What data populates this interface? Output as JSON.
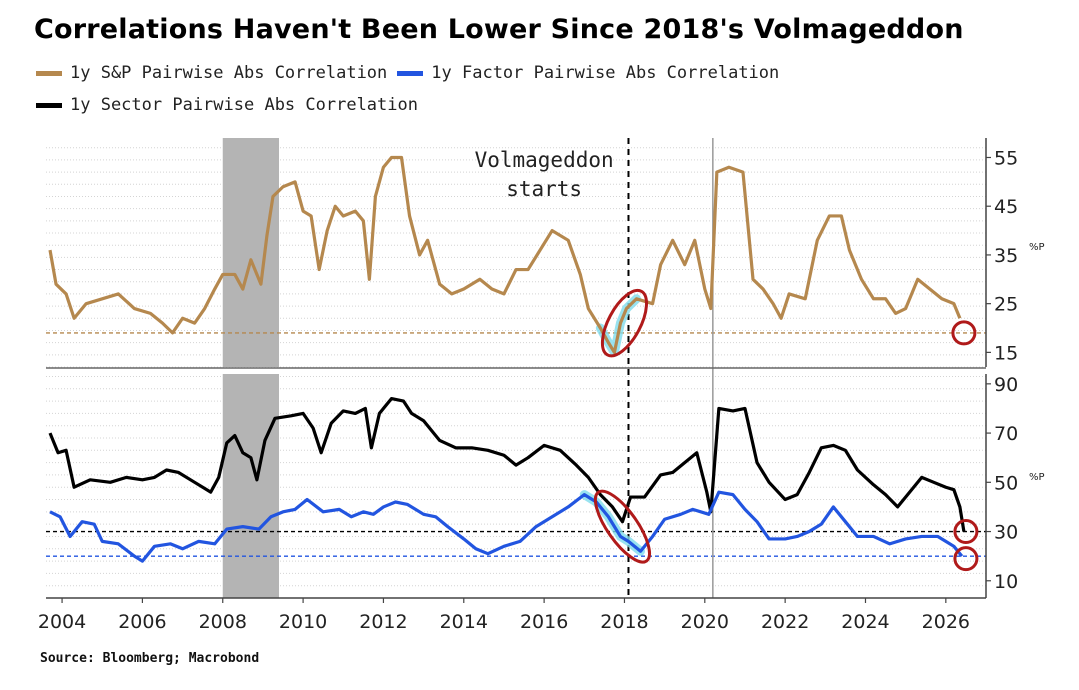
{
  "title": "Correlations Haven't Been Lower Since 2018's Volmageddon",
  "source": "Source: Bloomberg; Macrobond",
  "colors": {
    "sp": "#b5884e",
    "factor": "#2255e0",
    "sector": "#000000",
    "recession": "#b4b4b4",
    "circle": "#b01a1a",
    "highlight": "#7fdcec"
  },
  "legend": [
    {
      "label": "1y S&P Pairwise Abs Correlation",
      "color": "#b5884e"
    },
    {
      "label": "1y Factor Pairwise Abs Correlation",
      "color": "#2255e0"
    },
    {
      "label": "1y Sector Pairwise Abs Correlation",
      "color": "#000000"
    }
  ],
  "chart_data": [
    {
      "type": "line",
      "panel": "top",
      "unit": "%P",
      "ylim": [
        12,
        59
      ],
      "yticks": [
        15,
        25,
        35,
        45,
        55
      ],
      "xlim": [
        2003.6,
        2027.0
      ],
      "xticks": [
        2004,
        2006,
        2008,
        2010,
        2012,
        2014,
        2016,
        2018,
        2020,
        2022,
        2024,
        2026
      ],
      "reference_lines": [
        {
          "y": 19,
          "color": "#b5884e",
          "style": "dashed"
        }
      ],
      "recession_shading": [
        2008.0,
        2009.4
      ],
      "vertical_lines": [
        {
          "x": 2018.1,
          "style": "dashed"
        },
        {
          "x": 2020.2,
          "style": "solid"
        }
      ],
      "annotation": "Volmageddon\nstarts",
      "series": [
        {
          "name": "1y S&P Pairwise Abs Correlation",
          "color": "#b5884e",
          "points": [
            [
              2003.7,
              36
            ],
            [
              2003.85,
              29
            ],
            [
              2004.1,
              27
            ],
            [
              2004.3,
              22
            ],
            [
              2004.6,
              25
            ],
            [
              2005.0,
              26
            ],
            [
              2005.4,
              27
            ],
            [
              2005.8,
              24
            ],
            [
              2006.2,
              23
            ],
            [
              2006.5,
              21
            ],
            [
              2006.75,
              19
            ],
            [
              2007.0,
              22
            ],
            [
              2007.3,
              21
            ],
            [
              2007.55,
              24
            ],
            [
              2007.8,
              28
            ],
            [
              2008.0,
              31
            ],
            [
              2008.3,
              31
            ],
            [
              2008.5,
              28
            ],
            [
              2008.7,
              34
            ],
            [
              2008.95,
              29
            ],
            [
              2009.1,
              39
            ],
            [
              2009.25,
              47
            ],
            [
              2009.5,
              49
            ],
            [
              2009.8,
              50
            ],
            [
              2010.0,
              44
            ],
            [
              2010.2,
              43
            ],
            [
              2010.4,
              32
            ],
            [
              2010.6,
              40
            ],
            [
              2010.8,
              45
            ],
            [
              2011.0,
              43
            ],
            [
              2011.3,
              44
            ],
            [
              2011.5,
              42
            ],
            [
              2011.65,
              30
            ],
            [
              2011.8,
              47
            ],
            [
              2012.0,
              53
            ],
            [
              2012.2,
              55
            ],
            [
              2012.45,
              55
            ],
            [
              2012.65,
              43
            ],
            [
              2012.9,
              35
            ],
            [
              2013.1,
              38
            ],
            [
              2013.4,
              29
            ],
            [
              2013.7,
              27
            ],
            [
              2014.0,
              28
            ],
            [
              2014.4,
              30
            ],
            [
              2014.7,
              28
            ],
            [
              2015.0,
              27
            ],
            [
              2015.3,
              32
            ],
            [
              2015.6,
              32
            ],
            [
              2015.9,
              36
            ],
            [
              2016.2,
              40
            ],
            [
              2016.6,
              38
            ],
            [
              2016.9,
              31
            ],
            [
              2017.1,
              24
            ],
            [
              2017.4,
              20
            ],
            [
              2017.6,
              17
            ],
            [
              2017.75,
              15
            ],
            [
              2017.9,
              21
            ],
            [
              2018.05,
              24
            ],
            [
              2018.3,
              26
            ],
            [
              2018.7,
              25
            ],
            [
              2018.9,
              33
            ],
            [
              2019.2,
              38
            ],
            [
              2019.5,
              33
            ],
            [
              2019.75,
              38
            ],
            [
              2020.0,
              28
            ],
            [
              2020.15,
              24
            ],
            [
              2020.3,
              52
            ],
            [
              2020.6,
              53
            ],
            [
              2020.95,
              52
            ],
            [
              2021.2,
              30
            ],
            [
              2021.45,
              28
            ],
            [
              2021.7,
              25
            ],
            [
              2021.9,
              22
            ],
            [
              2022.1,
              27
            ],
            [
              2022.5,
              26
            ],
            [
              2022.8,
              38
            ],
            [
              2023.1,
              43
            ],
            [
              2023.4,
              43
            ],
            [
              2023.6,
              36
            ],
            [
              2023.9,
              30
            ],
            [
              2024.2,
              26
            ],
            [
              2024.5,
              26
            ],
            [
              2024.75,
              23
            ],
            [
              2025.0,
              24
            ],
            [
              2025.3,
              30
            ],
            [
              2025.6,
              28
            ],
            [
              2025.9,
              26
            ],
            [
              2026.2,
              25
            ],
            [
              2026.35,
              22
            ]
          ]
        }
      ]
    },
    {
      "type": "line",
      "panel": "bottom",
      "unit": "%P",
      "ylim": [
        3,
        94
      ],
      "yticks": [
        10,
        30,
        50,
        70,
        90
      ],
      "xlim": [
        2003.6,
        2027.0
      ],
      "xticks": [
        2004,
        2006,
        2008,
        2010,
        2012,
        2014,
        2016,
        2018,
        2020,
        2022,
        2024,
        2026
      ],
      "reference_lines": [
        {
          "y": 30,
          "color": "#000000",
          "style": "dashed"
        },
        {
          "y": 20,
          "color": "#2255e0",
          "style": "dashed"
        }
      ],
      "recession_shading": [
        2008.0,
        2009.4
      ],
      "vertical_lines": [
        {
          "x": 2018.1,
          "style": "dashed"
        },
        {
          "x": 2020.2,
          "style": "solid"
        }
      ],
      "series": [
        {
          "name": "1y Sector Pairwise Abs Correlation",
          "color": "#000000",
          "points": [
            [
              2003.7,
              70
            ],
            [
              2003.9,
              62
            ],
            [
              2004.1,
              63
            ],
            [
              2004.3,
              48
            ],
            [
              2004.7,
              51
            ],
            [
              2005.2,
              50
            ],
            [
              2005.6,
              52
            ],
            [
              2006.0,
              51
            ],
            [
              2006.3,
              52
            ],
            [
              2006.6,
              55
            ],
            [
              2006.9,
              54
            ],
            [
              2007.3,
              50
            ],
            [
              2007.7,
              46
            ],
            [
              2007.9,
              52
            ],
            [
              2008.1,
              66
            ],
            [
              2008.3,
              69
            ],
            [
              2008.5,
              62
            ],
            [
              2008.7,
              60
            ],
            [
              2008.85,
              51
            ],
            [
              2009.05,
              67
            ],
            [
              2009.3,
              76
            ],
            [
              2009.7,
              77
            ],
            [
              2010.0,
              78
            ],
            [
              2010.25,
              72
            ],
            [
              2010.45,
              62
            ],
            [
              2010.7,
              74
            ],
            [
              2011.0,
              79
            ],
            [
              2011.3,
              78
            ],
            [
              2011.55,
              80
            ],
            [
              2011.7,
              64
            ],
            [
              2011.9,
              78
            ],
            [
              2012.2,
              84
            ],
            [
              2012.5,
              83
            ],
            [
              2012.7,
              78
            ],
            [
              2013.0,
              75
            ],
            [
              2013.4,
              67
            ],
            [
              2013.8,
              64
            ],
            [
              2014.2,
              64
            ],
            [
              2014.6,
              63
            ],
            [
              2015.0,
              61
            ],
            [
              2015.3,
              57
            ],
            [
              2015.6,
              60
            ],
            [
              2016.0,
              65
            ],
            [
              2016.4,
              63
            ],
            [
              2016.8,
              57
            ],
            [
              2017.1,
              52
            ],
            [
              2017.4,
              45
            ],
            [
              2017.7,
              40
            ],
            [
              2017.95,
              34
            ],
            [
              2018.15,
              44
            ],
            [
              2018.5,
              44
            ],
            [
              2018.9,
              53
            ],
            [
              2019.2,
              54
            ],
            [
              2019.5,
              58
            ],
            [
              2019.8,
              62
            ],
            [
              2020.05,
              46
            ],
            [
              2020.15,
              38
            ],
            [
              2020.35,
              80
            ],
            [
              2020.7,
              79
            ],
            [
              2021.0,
              80
            ],
            [
              2021.3,
              58
            ],
            [
              2021.6,
              50
            ],
            [
              2022.0,
              43
            ],
            [
              2022.3,
              45
            ],
            [
              2022.6,
              54
            ],
            [
              2022.9,
              64
            ],
            [
              2023.2,
              65
            ],
            [
              2023.5,
              63
            ],
            [
              2023.8,
              55
            ],
            [
              2024.2,
              49
            ],
            [
              2024.5,
              45
            ],
            [
              2024.8,
              40
            ],
            [
              2025.1,
              46
            ],
            [
              2025.4,
              52
            ],
            [
              2025.7,
              50
            ],
            [
              2026.0,
              48
            ],
            [
              2026.2,
              47
            ],
            [
              2026.35,
              40
            ],
            [
              2026.45,
              30
            ]
          ]
        },
        {
          "name": "1y Factor Pairwise Abs Correlation",
          "color": "#2255e0",
          "points": [
            [
              2003.7,
              38
            ],
            [
              2003.95,
              36
            ],
            [
              2004.2,
              28
            ],
            [
              2004.5,
              34
            ],
            [
              2004.8,
              33
            ],
            [
              2005.0,
              26
            ],
            [
              2005.4,
              25
            ],
            [
              2005.8,
              20
            ],
            [
              2006.0,
              18
            ],
            [
              2006.3,
              24
            ],
            [
              2006.7,
              25
            ],
            [
              2007.0,
              23
            ],
            [
              2007.4,
              26
            ],
            [
              2007.8,
              25
            ],
            [
              2008.1,
              31
            ],
            [
              2008.5,
              32
            ],
            [
              2008.9,
              31
            ],
            [
              2009.2,
              36
            ],
            [
              2009.5,
              38
            ],
            [
              2009.8,
              39
            ],
            [
              2010.1,
              43
            ],
            [
              2010.5,
              38
            ],
            [
              2010.9,
              39
            ],
            [
              2011.2,
              36
            ],
            [
              2011.5,
              38
            ],
            [
              2011.75,
              37
            ],
            [
              2012.0,
              40
            ],
            [
              2012.3,
              42
            ],
            [
              2012.6,
              41
            ],
            [
              2013.0,
              37
            ],
            [
              2013.3,
              36
            ],
            [
              2013.6,
              32
            ],
            [
              2014.0,
              27
            ],
            [
              2014.3,
              23
            ],
            [
              2014.6,
              21
            ],
            [
              2015.0,
              24
            ],
            [
              2015.4,
              26
            ],
            [
              2015.8,
              32
            ],
            [
              2016.2,
              36
            ],
            [
              2016.6,
              40
            ],
            [
              2017.0,
              45
            ],
            [
              2017.3,
              42
            ],
            [
              2017.6,
              36
            ],
            [
              2017.9,
              28
            ],
            [
              2018.1,
              26
            ],
            [
              2018.4,
              22
            ],
            [
              2018.7,
              28
            ],
            [
              2019.0,
              35
            ],
            [
              2019.4,
              37
            ],
            [
              2019.7,
              39
            ],
            [
              2020.1,
              37
            ],
            [
              2020.35,
              46
            ],
            [
              2020.7,
              45
            ],
            [
              2021.0,
              39
            ],
            [
              2021.3,
              34
            ],
            [
              2021.6,
              27
            ],
            [
              2022.0,
              27
            ],
            [
              2022.3,
              28
            ],
            [
              2022.6,
              30
            ],
            [
              2022.9,
              33
            ],
            [
              2023.2,
              40
            ],
            [
              2023.5,
              34
            ],
            [
              2023.8,
              28
            ],
            [
              2024.2,
              28
            ],
            [
              2024.6,
              25
            ],
            [
              2025.0,
              27
            ],
            [
              2025.4,
              28
            ],
            [
              2025.8,
              28
            ],
            [
              2026.0,
              26
            ],
            [
              2026.2,
              24
            ],
            [
              2026.4,
              20
            ]
          ]
        }
      ]
    }
  ]
}
